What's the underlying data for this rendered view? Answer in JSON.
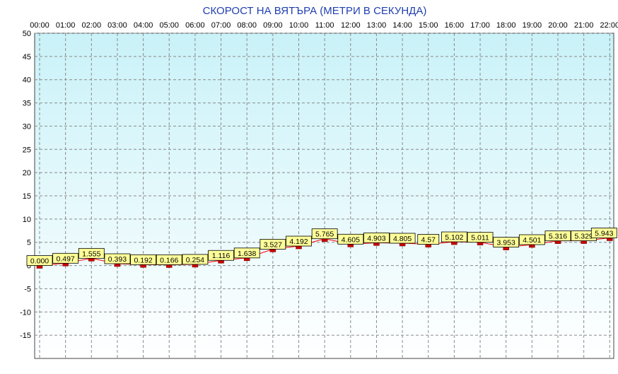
{
  "chart_data": {
    "type": "line",
    "title": "СКОРОСТ НА ВЯТЪРА (МЕТРИ В СЕКУНДА)",
    "xlabel": "",
    "ylabel": "",
    "categories": [
      "00:00",
      "01:00",
      "02:00",
      "03:00",
      "04:00",
      "05:00",
      "06:00",
      "07:00",
      "08:00",
      "09:00",
      "10:00",
      "11:00",
      "12:00",
      "13:00",
      "14:00",
      "15:00",
      "16:00",
      "17:00",
      "18:00",
      "19:00",
      "20:00",
      "21:00",
      "22:00"
    ],
    "series": [
      {
        "values": [
          0.0,
          0.497,
          1.555,
          0.393,
          0.192,
          0.166,
          0.254,
          1.116,
          1.638,
          3.527,
          4.192,
          5.765,
          4.605,
          4.903,
          4.805,
          4.57,
          5.102,
          5.011,
          3.953,
          4.501,
          5.316,
          5.329,
          5.943
        ],
        "labels": [
          "0.000",
          "0.497",
          "1.555",
          "0.393",
          "0.192",
          "0.166",
          "0.254",
          "1.116",
          "1.638",
          "3.527",
          "4.192",
          "5.765",
          "4.605",
          "4.903",
          "4.805",
          "4.57",
          "5.102",
          "5.011",
          "3.953",
          "4.501",
          "5.316",
          "5.329",
          "5.943"
        ]
      }
    ],
    "ylim": [
      -20,
      50
    ],
    "yticks": [
      "50",
      "45",
      "40",
      "35",
      "30",
      "25",
      "20",
      "15",
      "10",
      "5",
      "0",
      "-5",
      "-10",
      "-15"
    ],
    "ytick_values": [
      50,
      45,
      40,
      35,
      30,
      25,
      20,
      15,
      10,
      5,
      0,
      -5,
      -10,
      -15
    ],
    "grid": true,
    "legend": "none",
    "colors": {
      "line": "#ff0000",
      "marker": "#cc0000",
      "label_bg": "#ffff99",
      "title": "#1f3fb0",
      "grid": "#8a8a8a",
      "bg_top": "#c9f2f8",
      "bg_bottom": "#ffffff"
    }
  }
}
